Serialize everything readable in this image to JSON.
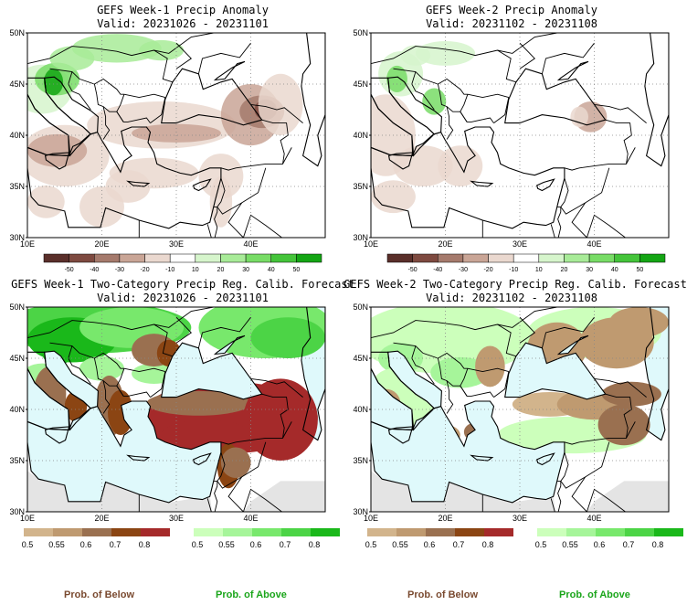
{
  "panels": [
    {
      "title_line1": "GEFS Week-1 Precip Anomaly",
      "title_line2": "Valid: 20231026 - 20231101",
      "type": "anomaly",
      "lat_labels": [
        "50N",
        "45N",
        "40N",
        "35N",
        "30N"
      ],
      "lon_labels": [
        "10E",
        "20E",
        "30E",
        "40E"
      ],
      "colorbar_ticks": [
        "-50",
        "-40",
        "-30",
        "-20",
        "-10",
        "10",
        "20",
        "30",
        "40",
        "50"
      ]
    },
    {
      "title_line1": "GEFS Week-2 Precip Anomaly",
      "title_line2": "Valid: 20231102 - 20231108",
      "type": "anomaly",
      "lat_labels": [
        "50N",
        "45N",
        "40N",
        "35N",
        "30N"
      ],
      "lon_labels": [
        "10E",
        "20E",
        "30E",
        "40E"
      ],
      "colorbar_ticks": [
        "-50",
        "-40",
        "-30",
        "-20",
        "-10",
        "10",
        "20",
        "30",
        "40",
        "50"
      ]
    },
    {
      "title_line1": "GEFS Week-1 Two-Category Precip Reg. Calib. Forecast",
      "title_line2": "Valid: 20231026 - 20231101",
      "type": "prob",
      "lat_labels": [
        "50N",
        "45N",
        "40N",
        "35N",
        "30N"
      ],
      "lon_labels": [
        "10E",
        "20E",
        "30E",
        "40E"
      ],
      "below_ticks": [
        "0.5",
        "0.55",
        "0.6",
        "0.7",
        "0.8"
      ],
      "above_ticks": [
        "0.5",
        "0.55",
        "0.6",
        "0.7",
        "0.8"
      ]
    },
    {
      "title_line1": "GEFS Week-2 Two-Category Precip Reg. Calib. Forecast",
      "title_line2": "Valid: 20231102 - 20231108",
      "type": "prob",
      "lat_labels": [
        "50N",
        "45N",
        "40N",
        "35N",
        "30N"
      ],
      "lon_labels": [
        "10E",
        "20E",
        "30E",
        "40E"
      ],
      "below_ticks": [
        "0.5",
        "0.55",
        "0.6",
        "0.7",
        "0.8"
      ],
      "above_ticks": [
        "0.5",
        "0.55",
        "0.6",
        "0.7",
        "0.8"
      ]
    }
  ],
  "footer": {
    "below_label": "Prob. of Below",
    "above_label": "Prob. of Above"
  },
  "colors": {
    "anomaly_scale": [
      "#5a2f2a",
      "#7e4a40",
      "#a57a6c",
      "#c9a596",
      "#ead8cf",
      "#ffffff",
      "#d6f5cc",
      "#a8eb98",
      "#78dc66",
      "#44c43a",
      "#14a514"
    ],
    "below_scale": [
      "#d2b48c",
      "#bf9a70",
      "#9a7050",
      "#8b4513",
      "#a52a2a"
    ],
    "above_scale": [
      "#ccffbb",
      "#a6f59a",
      "#78e86c",
      "#4cd446",
      "#1ab81a"
    ],
    "sea": "#dff9fb",
    "no_data": "#e4e4e4",
    "border": "#000000"
  }
}
